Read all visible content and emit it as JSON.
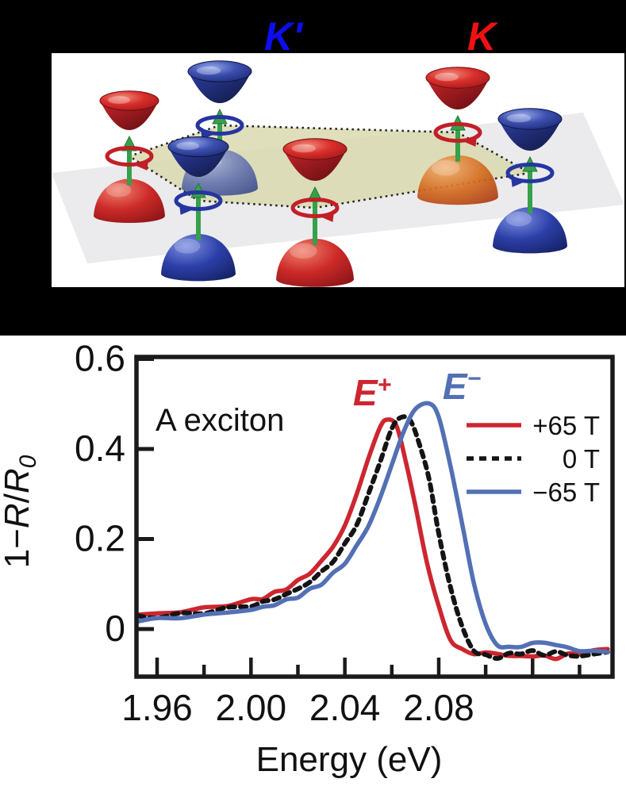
{
  "diagram": {
    "kprime_label": "K'",
    "k_label": "K",
    "kprime_label_color": "#0d0df0",
    "k_label_color": "#f01212",
    "background_color": "#000000",
    "panel_color": "#ffffff",
    "plane_color": "#ebebee",
    "hexagon_fill": "#d8d8ac",
    "arrow_color": "#36a04b",
    "band_red": "#c4212a",
    "band_blue": "#27369b",
    "valleys": [
      {
        "id": "back-left",
        "valley": "K",
        "conduction": "red",
        "circulation": "red-ring"
      },
      {
        "id": "back-center",
        "valley": "K'",
        "conduction": "blue",
        "circulation": "blue-ring"
      },
      {
        "id": "back-right",
        "valley": "K",
        "conduction": "red",
        "circulation": "red-ring"
      },
      {
        "id": "right",
        "valley": "K'",
        "conduction": "blue",
        "circulation": "blue-ring"
      },
      {
        "id": "front-right",
        "valley": "K",
        "conduction": "red",
        "circulation": "red-ring"
      },
      {
        "id": "front-left",
        "valley": "K'",
        "conduction": "blue",
        "circulation": "blue-ring"
      }
    ]
  },
  "chart_data": {
    "type": "line",
    "title": "A exciton",
    "xlabel": "Energy (eV)",
    "ylabel": "1−R/R0",
    "ylabel_parts": [
      "1−",
      "R",
      "/",
      "R",
      "0"
    ],
    "xlim": [
      1.951,
      2.154
    ],
    "ylim": [
      -0.106,
      0.604
    ],
    "x_major_ticks": [
      1.96,
      2.0,
      2.04,
      2.08,
      2.12
    ],
    "x_tick_labels": [
      "1.96",
      "2.00",
      "2.04",
      "2.08",
      ""
    ],
    "x_minor_ticks": [
      1.98,
      2.02,
      2.06,
      2.1,
      2.14
    ],
    "y_ticks": [
      0,
      0.2,
      0.4,
      0.6
    ],
    "y_tick_labels": [
      "0",
      "0.2",
      "0.4",
      "0.6"
    ],
    "grid": false,
    "legend_position": "upper right",
    "peak_labels": [
      {
        "base": "E",
        "sup": "+",
        "color": "#cd2630",
        "x": 2.051,
        "y": 0.527
      },
      {
        "base": "E",
        "sup": "−",
        "color": "#5470b4",
        "x": 2.089,
        "y": 0.539
      }
    ],
    "series": [
      {
        "name": "+65 T",
        "color": "#cd2630",
        "style": "solid",
        "points": [
          [
            1.952,
            0.032
          ],
          [
            1.96,
            0.034
          ],
          [
            1.97,
            0.039
          ],
          [
            1.98,
            0.046
          ],
          [
            1.99,
            0.054
          ],
          [
            2.0,
            0.063
          ],
          [
            2.005,
            0.07
          ],
          [
            2.01,
            0.079
          ],
          [
            2.015,
            0.091
          ],
          [
            2.02,
            0.106
          ],
          [
            2.025,
            0.125
          ],
          [
            2.03,
            0.15
          ],
          [
            2.035,
            0.184
          ],
          [
            2.04,
            0.23
          ],
          [
            2.045,
            0.298
          ],
          [
            2.05,
            0.38
          ],
          [
            2.055,
            0.446
          ],
          [
            2.058,
            0.468
          ],
          [
            2.062,
            0.448
          ],
          [
            2.066,
            0.375
          ],
          [
            2.07,
            0.272
          ],
          [
            2.075,
            0.15
          ],
          [
            2.08,
            0.048
          ],
          [
            2.085,
            -0.022
          ],
          [
            2.09,
            -0.046
          ],
          [
            2.095,
            -0.055
          ],
          [
            2.1,
            -0.052
          ],
          [
            2.105,
            -0.056
          ],
          [
            2.11,
            -0.058
          ],
          [
            2.115,
            -0.062
          ],
          [
            2.12,
            -0.058
          ],
          [
            2.125,
            -0.062
          ],
          [
            2.13,
            -0.063
          ],
          [
            2.135,
            -0.058
          ],
          [
            2.14,
            -0.053
          ],
          [
            2.146,
            -0.05
          ],
          [
            2.152,
            -0.042
          ]
        ]
      },
      {
        "name": "0 T",
        "color": "#141414",
        "style": "dashed",
        "points": [
          [
            1.952,
            0.026
          ],
          [
            1.96,
            0.028
          ],
          [
            1.97,
            0.032
          ],
          [
            1.98,
            0.038
          ],
          [
            1.99,
            0.045
          ],
          [
            2.0,
            0.053
          ],
          [
            2.005,
            0.059
          ],
          [
            2.01,
            0.067
          ],
          [
            2.015,
            0.077
          ],
          [
            2.02,
            0.089
          ],
          [
            2.025,
            0.105
          ],
          [
            2.03,
            0.126
          ],
          [
            2.035,
            0.152
          ],
          [
            2.04,
            0.187
          ],
          [
            2.045,
            0.234
          ],
          [
            2.05,
            0.296
          ],
          [
            2.055,
            0.374
          ],
          [
            2.06,
            0.442
          ],
          [
            2.064,
            0.473
          ],
          [
            2.068,
            0.46
          ],
          [
            2.072,
            0.408
          ],
          [
            2.076,
            0.33
          ],
          [
            2.08,
            0.212
          ],
          [
            2.085,
            0.094
          ],
          [
            2.09,
            0.004
          ],
          [
            2.095,
            -0.046
          ],
          [
            2.1,
            -0.06
          ],
          [
            2.105,
            -0.062
          ],
          [
            2.11,
            -0.057
          ],
          [
            2.115,
            -0.052
          ],
          [
            2.12,
            -0.051
          ],
          [
            2.125,
            -0.056
          ],
          [
            2.13,
            -0.052
          ],
          [
            2.135,
            -0.057
          ],
          [
            2.14,
            -0.061
          ],
          [
            2.146,
            -0.056
          ],
          [
            2.152,
            -0.05
          ]
        ]
      },
      {
        "name": "−65 T",
        "color": "#5470b4",
        "style": "solid",
        "points": [
          [
            1.952,
            0.02
          ],
          [
            1.96,
            0.022
          ],
          [
            1.97,
            0.026
          ],
          [
            1.98,
            0.031
          ],
          [
            1.99,
            0.037
          ],
          [
            2.0,
            0.043
          ],
          [
            2.005,
            0.048
          ],
          [
            2.01,
            0.055
          ],
          [
            2.015,
            0.063
          ],
          [
            2.02,
            0.073
          ],
          [
            2.025,
            0.086
          ],
          [
            2.03,
            0.102
          ],
          [
            2.035,
            0.122
          ],
          [
            2.04,
            0.148
          ],
          [
            2.045,
            0.183
          ],
          [
            2.05,
            0.23
          ],
          [
            2.055,
            0.29
          ],
          [
            2.06,
            0.365
          ],
          [
            2.065,
            0.438
          ],
          [
            2.07,
            0.487
          ],
          [
            2.076,
            0.503
          ],
          [
            2.08,
            0.468
          ],
          [
            2.085,
            0.365
          ],
          [
            2.09,
            0.23
          ],
          [
            2.095,
            0.105
          ],
          [
            2.1,
            0.008
          ],
          [
            2.105,
            -0.033
          ],
          [
            2.11,
            -0.042
          ],
          [
            2.115,
            -0.038
          ],
          [
            2.12,
            -0.032
          ],
          [
            2.125,
            -0.03
          ],
          [
            2.13,
            -0.035
          ],
          [
            2.135,
            -0.042
          ],
          [
            2.14,
            -0.047
          ],
          [
            2.146,
            -0.051
          ],
          [
            2.152,
            -0.048
          ]
        ]
      }
    ]
  }
}
